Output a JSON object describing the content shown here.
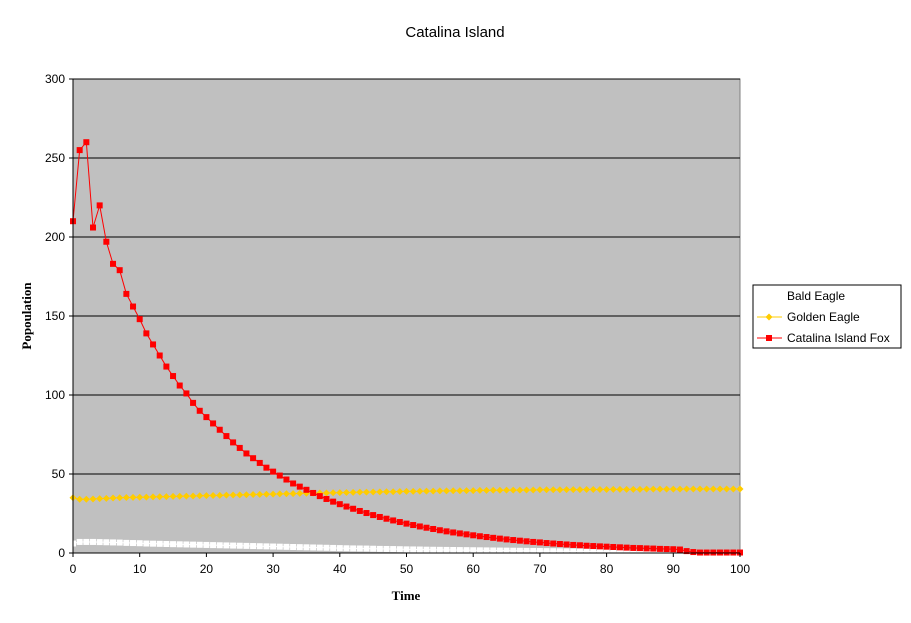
{
  "chart_data": {
    "type": "line",
    "title": "Catalina Island",
    "xlabel": "Time",
    "ylabel": "Popoulation",
    "xlim": [
      0,
      100
    ],
    "ylim": [
      0,
      300
    ],
    "xticks": [
      0,
      10,
      20,
      30,
      40,
      50,
      60,
      70,
      80,
      90,
      100
    ],
    "yticks": [
      0,
      50,
      100,
      150,
      200,
      250,
      300
    ],
    "grid": "horizontal",
    "legend_position": "right",
    "plot_background": "#c0c0c0",
    "series": [
      {
        "name": "Bald Eagle",
        "color": "#ffffff",
        "marker": "square",
        "x": [
          0,
          1,
          2,
          3,
          4,
          5,
          6,
          7,
          8,
          9,
          10,
          11,
          12,
          13,
          14,
          15,
          16,
          17,
          18,
          19,
          20,
          21,
          22,
          23,
          24,
          25,
          26,
          27,
          28,
          29,
          30,
          31,
          32,
          33,
          34,
          35,
          36,
          37,
          38,
          39,
          40,
          41,
          42,
          43,
          44,
          45,
          46,
          47,
          48,
          49,
          50,
          51,
          52,
          53,
          54,
          55,
          56,
          57,
          58,
          59,
          60,
          61,
          62,
          63,
          64,
          65,
          66,
          67,
          68,
          69,
          70,
          71,
          72,
          73,
          74,
          75,
          76,
          77,
          78,
          79,
          80,
          81,
          82,
          83,
          84,
          85,
          86,
          87,
          88,
          89,
          90,
          91,
          92,
          93,
          94,
          95,
          96,
          97,
          98,
          99,
          100
        ],
        "values": [
          6,
          7,
          7,
          7,
          6.9,
          6.8,
          6.7,
          6.6,
          6.4,
          6.3,
          6.2,
          6.0,
          5.9,
          5.8,
          5.7,
          5.6,
          5.5,
          5.4,
          5.3,
          5.2,
          5.1,
          5.0,
          4.9,
          4.8,
          4.7,
          4.6,
          4.5,
          4.4,
          4.3,
          4.2,
          4.1,
          4.0,
          3.9,
          3.8,
          3.7,
          3.6,
          3.5,
          3.4,
          3.3,
          3.2,
          3.1,
          3.0,
          2.9,
          2.85,
          2.8,
          2.7,
          2.6,
          2.55,
          2.5,
          2.4,
          2.3,
          2.25,
          2.2,
          2.1,
          2.05,
          2.0,
          1.95,
          1.9,
          1.85,
          1.8,
          1.75,
          1.7,
          1.65,
          1.6,
          1.55,
          1.5,
          1.45,
          1.4,
          1.35,
          1.3,
          1.25,
          1.2,
          1.15,
          1.1,
          1.05,
          1.0,
          0.95,
          0.9,
          0.85,
          0.8,
          0.8,
          0.75,
          0.7,
          0.7,
          0.65,
          0.6,
          0.6,
          0.55,
          0.5,
          0.5,
          0.45,
          0.45,
          0.4,
          0.4,
          0.35,
          0.35,
          0.3,
          0.3,
          0.3,
          0.25,
          0.25
        ]
      },
      {
        "name": "Golden Eagle",
        "color": "#ffcc00",
        "marker": "diamond",
        "x": [
          0,
          1,
          2,
          3,
          4,
          5,
          6,
          7,
          8,
          9,
          10,
          11,
          12,
          13,
          14,
          15,
          16,
          17,
          18,
          19,
          20,
          21,
          22,
          23,
          24,
          25,
          26,
          27,
          28,
          29,
          30,
          31,
          32,
          33,
          34,
          35,
          36,
          37,
          38,
          39,
          40,
          41,
          42,
          43,
          44,
          45,
          46,
          47,
          48,
          49,
          50,
          51,
          52,
          53,
          54,
          55,
          56,
          57,
          58,
          59,
          60,
          61,
          62,
          63,
          64,
          65,
          66,
          67,
          68,
          69,
          70,
          71,
          72,
          73,
          74,
          75,
          76,
          77,
          78,
          79,
          80,
          81,
          82,
          83,
          84,
          85,
          86,
          87,
          88,
          89,
          90,
          91,
          92,
          93,
          94,
          95,
          96,
          97,
          98,
          99,
          100
        ],
        "values": [
          35,
          34,
          34,
          34.2,
          34.4,
          34.6,
          34.8,
          35,
          35.1,
          35.2,
          35.3,
          35.4,
          35.5,
          35.6,
          35.7,
          35.8,
          35.9,
          36,
          36.1,
          36.2,
          36.3,
          36.4,
          36.5,
          36.6,
          36.7,
          36.8,
          36.9,
          37,
          37.1,
          37.2,
          37.3,
          37.4,
          37.5,
          37.6,
          37.7,
          37.8,
          37.9,
          38,
          38,
          38.1,
          38.2,
          38.3,
          38.4,
          38.5,
          38.5,
          38.6,
          38.7,
          38.8,
          38.8,
          38.9,
          39,
          39,
          39.1,
          39.2,
          39.2,
          39.3,
          39.3,
          39.4,
          39.4,
          39.5,
          39.5,
          39.6,
          39.6,
          39.7,
          39.7,
          39.8,
          39.8,
          39.8,
          39.9,
          39.9,
          40,
          40,
          40,
          40,
          40.1,
          40.1,
          40.1,
          40.2,
          40.2,
          40.2,
          40.2,
          40.3,
          40.3,
          40.3,
          40.3,
          40.3,
          40.4,
          40.4,
          40.4,
          40.4,
          40.4,
          40.4,
          40.5,
          40.5,
          40.5,
          40.5,
          40.5,
          40.5,
          40.5,
          40.5,
          40.5
        ]
      },
      {
        "name": "Catalina Island Fox",
        "color": "#ff0000",
        "marker": "square",
        "x": [
          0,
          1,
          2,
          3,
          4,
          5,
          6,
          7,
          8,
          9,
          10,
          11,
          12,
          13,
          14,
          15,
          16,
          17,
          18,
          19,
          20,
          21,
          22,
          23,
          24,
          25,
          26,
          27,
          28,
          29,
          30,
          31,
          32,
          33,
          34,
          35,
          36,
          37,
          38,
          39,
          40,
          41,
          42,
          43,
          44,
          45,
          46,
          47,
          48,
          49,
          50,
          51,
          52,
          53,
          54,
          55,
          56,
          57,
          58,
          59,
          60,
          61,
          62,
          63,
          64,
          65,
          66,
          67,
          68,
          69,
          70,
          71,
          72,
          73,
          74,
          75,
          76,
          77,
          78,
          79,
          80,
          81,
          82,
          83,
          84,
          85,
          86,
          87,
          88,
          89,
          90,
          91,
          92,
          93,
          94,
          95,
          96,
          97,
          98,
          99,
          100
        ],
        "values": [
          210,
          255,
          260,
          206,
          220,
          197,
          183,
          179,
          164,
          156,
          148,
          139,
          132,
          125,
          118,
          112,
          106,
          101,
          95,
          90,
          86,
          82,
          78,
          74,
          70,
          66.5,
          63,
          60,
          57,
          54,
          51.5,
          49,
          46.5,
          44,
          42,
          40,
          38,
          36,
          34.2,
          32.5,
          30.9,
          29.4,
          28,
          26.6,
          25.3,
          24,
          22.8,
          21.7,
          20.6,
          19.6,
          18.6,
          17.7,
          16.8,
          16,
          15.2,
          14.4,
          13.7,
          13,
          12.4,
          11.8,
          11.2,
          10.6,
          10.1,
          9.6,
          9.1,
          8.6,
          8.2,
          7.8,
          7.4,
          7,
          6.7,
          6.3,
          6,
          5.7,
          5.4,
          5.1,
          4.9,
          4.6,
          4.4,
          4.2,
          4,
          3.8,
          3.6,
          3.4,
          3.2,
          3.1,
          2.9,
          2.8,
          2.6,
          2.5,
          2.4,
          2.2,
          1.2,
          0.6,
          0.3,
          0.3,
          0.3,
          0.3,
          0.3,
          0.3,
          0.3
        ]
      }
    ]
  }
}
